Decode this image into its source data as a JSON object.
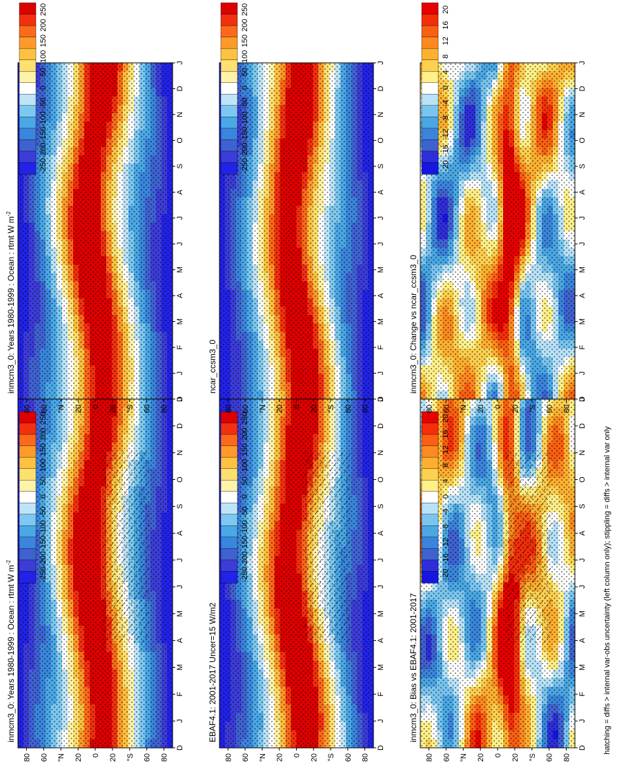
{
  "footer_note": "hatching = diffs > internal var-obs uncertainty (left column only); stippling = diffs > internal var only",
  "chart_data": [
    {
      "type": "heatmap",
      "id": "p1",
      "title": "inmcm3_0: Years 1980-1999 : Ocean : rtmt W m",
      "title_sup": "-2",
      "x": [
        "D",
        "J",
        "F",
        "M",
        "A",
        "M",
        "J",
        "J",
        "A",
        "S",
        "O",
        "N",
        "D",
        "J"
      ],
      "y": [
        "80",
        "60",
        "°N",
        "20",
        "0",
        "20",
        "°S",
        "60",
        "80"
      ],
      "colorbar": [
        "250",
        "200",
        "150",
        "100",
        "50",
        "0",
        "-50",
        "-100",
        "-150",
        "-200",
        "-250"
      ],
      "palette": "full",
      "hatching": true,
      "stippling": true
    },
    {
      "type": "heatmap",
      "id": "p2",
      "title": "inmcm3_0: Years 1980-1999 : Ocean : rtmt W m",
      "title_sup": "-2",
      "x": [
        "D",
        "J",
        "F",
        "M",
        "A",
        "M",
        "J",
        "J",
        "A",
        "S",
        "O",
        "N",
        "D",
        "J"
      ],
      "y": [
        "80",
        "60",
        "°N",
        "20",
        "0",
        "20",
        "°S",
        "60",
        "80"
      ],
      "colorbar": [
        "250",
        "200",
        "150",
        "100",
        "50",
        "0",
        "-50",
        "-100",
        "-150",
        "-200",
        "-250"
      ],
      "palette": "full",
      "hatching": false,
      "stippling": true
    },
    {
      "type": "heatmap",
      "id": "p3",
      "title": "EBAF4.1: 2001-2017 Uncer=15 W/m2",
      "x": [
        "D",
        "J",
        "F",
        "M",
        "A",
        "M",
        "J",
        "J",
        "A",
        "S",
        "O",
        "N",
        "D",
        "J"
      ],
      "y": [
        "80",
        "60",
        "°N",
        "20",
        "0",
        "20",
        "°S",
        "60",
        "80"
      ],
      "colorbar": [
        "250",
        "200",
        "150",
        "100",
        "50",
        "0",
        "-50",
        "-100",
        "-150",
        "-200",
        "-250"
      ],
      "palette": "full",
      "hatching": true,
      "stippling": true
    },
    {
      "type": "heatmap",
      "id": "p4",
      "title": "ncar_ccsm3_0",
      "x": [
        "D",
        "J",
        "F",
        "M",
        "A",
        "M",
        "J",
        "J",
        "A",
        "S",
        "O",
        "N",
        "D",
        "J"
      ],
      "y": [
        "80",
        "60",
        "°N",
        "20",
        "0",
        "20",
        "°S",
        "60",
        "80"
      ],
      "colorbar": [
        "250",
        "200",
        "150",
        "100",
        "50",
        "0",
        "-50",
        "-100",
        "-150",
        "-200",
        "-250"
      ],
      "palette": "full",
      "hatching": false,
      "stippling": true
    },
    {
      "type": "heatmap",
      "id": "p5",
      "title": "inmcm3_0: Bias vs EBAF4.1: 2001-2017",
      "x": [
        "D",
        "J",
        "F",
        "M",
        "A",
        "M",
        "J",
        "J",
        "A",
        "S",
        "O",
        "N",
        "D",
        "J"
      ],
      "y": [
        "80",
        "60",
        "°N",
        "20",
        "0",
        "20",
        "°S",
        "60",
        "80"
      ],
      "colorbar": [
        "20",
        "16",
        "12",
        "8",
        "4",
        "0",
        "-4",
        "-8",
        "-12",
        "-16",
        "-20"
      ],
      "palette": "diff",
      "hatching": true,
      "stippling": true
    },
    {
      "type": "heatmap",
      "id": "p6",
      "title": "inmcm3_0: Change vs ncar_ccsm3_0",
      "x": [
        "D",
        "J",
        "F",
        "M",
        "A",
        "M",
        "J",
        "J",
        "A",
        "S",
        "O",
        "N",
        "D",
        "J"
      ],
      "y": [
        "80",
        "60",
        "°N",
        "20",
        "0",
        "20",
        "°S",
        "60",
        "80"
      ],
      "colorbar": [
        "20",
        "16",
        "12",
        "8",
        "4",
        "0",
        "-4",
        "-8",
        "-12",
        "-16",
        "-20"
      ],
      "palette": "diff",
      "hatching": false,
      "stippling": true
    }
  ]
}
